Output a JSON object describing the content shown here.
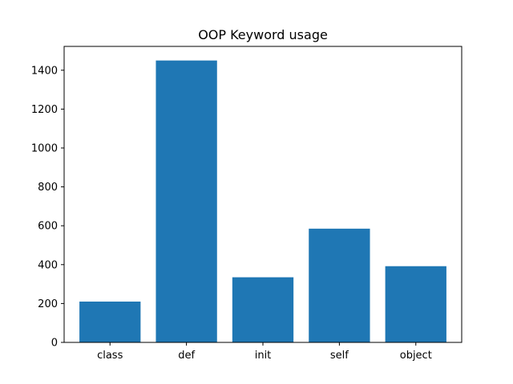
{
  "chart_data": {
    "type": "bar",
    "title": "OOP Keyword usage",
    "xlabel": "",
    "ylabel": "",
    "categories": [
      "class",
      "def",
      "init",
      "self",
      "object"
    ],
    "values": [
      210,
      1450,
      335,
      585,
      392
    ],
    "ylim": [
      0,
      1522.5
    ],
    "yticks": [
      0,
      200,
      400,
      600,
      800,
      1000,
      1200,
      1400
    ],
    "grid": false,
    "legend": "none",
    "bar_color": "#1f77b4"
  }
}
